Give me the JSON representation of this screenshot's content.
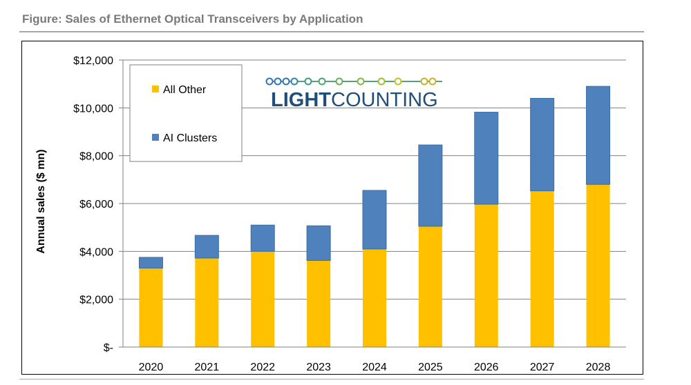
{
  "figure_title": "Figure: Sales of Ethernet Optical Transceivers by Application",
  "logo": {
    "light": "LIGHT",
    "counting": "COUNTING"
  },
  "colors": {
    "all_other": "#FFC000",
    "ai_clusters": "#4F81BD",
    "grid": "#7f7f7f",
    "logo_blue": "#1f4e79"
  },
  "chart_data": {
    "type": "bar",
    "stacked": true,
    "title": "Figure: Sales of Ethernet Optical Transceivers by Application",
    "xlabel": "",
    "ylabel": "Annual sales ($ mn)",
    "ylim": [
      0,
      12000
    ],
    "yticks": [
      0,
      2000,
      4000,
      6000,
      8000,
      10000,
      12000
    ],
    "ytick_labels": [
      "$-",
      "$2,000",
      "$4,000",
      "$6,000",
      "$8,000",
      "$10,000",
      "$12,000"
    ],
    "grid": true,
    "legend_position": "top-left",
    "categories": [
      "2020",
      "2021",
      "2022",
      "2023",
      "2024",
      "2025",
      "2026",
      "2027",
      "2028"
    ],
    "series": [
      {
        "name": "All Other",
        "values": [
          3300,
          3720,
          4000,
          3620,
          4100,
          5050,
          5970,
          6530,
          6800
        ]
      },
      {
        "name": "AI Clusters",
        "values": [
          450,
          950,
          1100,
          1450,
          2450,
          3400,
          3850,
          3870,
          4100
        ]
      }
    ]
  }
}
